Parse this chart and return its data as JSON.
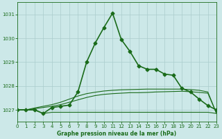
{
  "title": "Graphe pression niveau de la mer (hPa)",
  "bg_color": "#cce8e8",
  "grid_color": "#aacccc",
  "line_color": "#1a6b1a",
  "x_ticks": [
    0,
    1,
    2,
    3,
    4,
    5,
    6,
    7,
    8,
    9,
    10,
    11,
    12,
    13,
    14,
    15,
    16,
    17,
    18,
    19,
    20,
    21,
    22,
    23
  ],
  "y_ticks": [
    1027,
    1028,
    1029,
    1030,
    1031
  ],
  "ylim": [
    1026.5,
    1031.5
  ],
  "xlim": [
    0,
    23
  ],
  "line1_x": [
    0,
    1,
    2,
    3,
    4,
    5,
    6,
    7,
    8,
    9,
    10,
    11,
    12,
    13,
    14,
    15,
    16,
    17,
    18,
    19,
    20,
    21,
    22,
    23
  ],
  "line1_y": [
    1027.0,
    1027.0,
    1027.0,
    1026.85,
    1027.1,
    1027.15,
    1027.2,
    1027.75,
    1029.0,
    1029.8,
    1030.45,
    1031.05,
    1029.95,
    1029.45,
    1028.85,
    1028.7,
    1028.7,
    1028.5,
    1028.45,
    1027.9,
    1027.75,
    1027.45,
    1027.18,
    1027.0
  ],
  "line2_x": [
    0,
    1,
    2,
    3,
    4,
    5,
    6,
    7,
    8,
    9,
    10,
    11,
    12,
    13,
    14,
    15,
    16,
    17,
    18,
    19,
    20,
    21,
    22,
    23
  ],
  "line2_y": [
    1027.0,
    1027.0,
    1027.0,
    1026.85,
    1026.9,
    1026.9,
    1026.9,
    1026.9,
    1026.9,
    1026.9,
    1026.9,
    1026.9,
    1026.9,
    1026.9,
    1026.9,
    1026.9,
    1026.9,
    1026.9,
    1026.9,
    1026.9,
    1026.9,
    1026.9,
    1026.9,
    1026.85
  ],
  "line3_x": [
    0,
    1,
    2,
    3,
    4,
    5,
    6,
    7,
    8,
    9,
    10,
    11,
    12,
    13,
    14,
    15,
    16,
    17,
    18,
    19,
    20,
    21,
    22,
    23
  ],
  "line3_y": [
    1027.0,
    1027.0,
    1027.05,
    1027.1,
    1027.15,
    1027.22,
    1027.32,
    1027.42,
    1027.52,
    1027.6,
    1027.65,
    1027.68,
    1027.7,
    1027.72,
    1027.72,
    1027.73,
    1027.75,
    1027.76,
    1027.77,
    1027.78,
    1027.76,
    1027.73,
    1027.7,
    1026.85
  ],
  "line4_x": [
    0,
    1,
    2,
    3,
    4,
    5,
    6,
    7,
    8,
    9,
    10,
    11,
    12,
    13,
    14,
    15,
    16,
    17,
    18,
    19,
    20,
    21,
    22,
    23
  ],
  "line4_y": [
    1027.0,
    1027.0,
    1027.08,
    1027.15,
    1027.22,
    1027.32,
    1027.45,
    1027.58,
    1027.68,
    1027.74,
    1027.79,
    1027.82,
    1027.84,
    1027.85,
    1027.86,
    1027.87,
    1027.87,
    1027.87,
    1027.87,
    1027.87,
    1027.85,
    1027.82,
    1027.75,
    1026.85
  ],
  "lw_main": 1.2,
  "lw_flat": 0.8,
  "marker": "D",
  "markersize": 2.5,
  "title_fontsize": 5.5,
  "tick_fontsize": 5.0
}
